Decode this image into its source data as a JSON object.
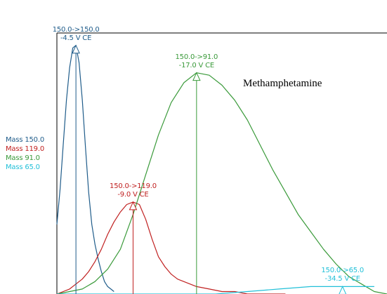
{
  "chart_data": {
    "type": "line",
    "title": "",
    "xlabel": "",
    "ylabel": "",
    "annotation": "Methamphetamine",
    "grid": false,
    "legend_position": "left",
    "series": [
      {
        "name": "Mass 150.0",
        "color": "#1f5c8a",
        "x": [
          0.0,
          0.05,
          0.1,
          0.15,
          0.2,
          0.25,
          0.3,
          0.35,
          0.4,
          0.45,
          0.5,
          0.55,
          0.6,
          0.65,
          0.7,
          0.75,
          0.8,
          0.85,
          0.9
        ],
        "values": [
          0.28,
          0.42,
          0.6,
          0.78,
          0.91,
          0.99,
          1.0,
          0.93,
          0.78,
          0.59,
          0.41,
          0.28,
          0.2,
          0.14,
          0.09,
          0.05,
          0.03,
          0.02,
          0.01
        ],
        "peak": {
          "transition": "150.0->150.0",
          "ce": "-4.5 V CE"
        }
      },
      {
        "name": "Mass 119.0",
        "color": "#c02020",
        "x": [
          0.0,
          0.1,
          0.2,
          0.3,
          0.4,
          0.5,
          0.6,
          0.7,
          0.8,
          0.9,
          1.0,
          1.1,
          1.2,
          1.3,
          1.4,
          1.5,
          1.6,
          1.7,
          1.8,
          1.9,
          2.0,
          2.2,
          2.4,
          2.6,
          2.8,
          3.0,
          3.2,
          3.4,
          3.6
        ],
        "values": [
          0.0,
          0.01,
          0.02,
          0.04,
          0.06,
          0.09,
          0.13,
          0.18,
          0.24,
          0.29,
          0.33,
          0.36,
          0.37,
          0.36,
          0.3,
          0.22,
          0.15,
          0.11,
          0.08,
          0.06,
          0.05,
          0.03,
          0.02,
          0.01,
          0.01,
          0.0,
          0.0,
          0.0,
          0.0
        ],
        "peak": {
          "transition": "150.0->119.0",
          "ce": "-9.0 V CE"
        }
      },
      {
        "name": "Mass 91.0",
        "color": "#3a9a3a",
        "x": [
          0.0,
          0.2,
          0.4,
          0.6,
          0.8,
          1.0,
          1.2,
          1.4,
          1.6,
          1.8,
          2.0,
          2.2,
          2.4,
          2.6,
          2.8,
          3.0,
          3.2,
          3.4,
          3.6,
          3.8,
          4.0,
          4.2,
          4.4,
          4.6,
          4.8,
          5.0,
          5.2
        ],
        "values": [
          0.0,
          0.01,
          0.02,
          0.05,
          0.1,
          0.18,
          0.32,
          0.48,
          0.64,
          0.77,
          0.85,
          0.89,
          0.88,
          0.84,
          0.78,
          0.7,
          0.6,
          0.5,
          0.41,
          0.32,
          0.25,
          0.18,
          0.12,
          0.07,
          0.04,
          0.01,
          0.0
        ],
        "peak": {
          "transition": "150.0->91.0",
          "ce": "-17.0 V CE"
        }
      },
      {
        "name": "Mass 65.0",
        "color": "#22c0d8",
        "x": [
          0.0,
          0.5,
          1.0,
          1.5,
          2.0,
          2.5,
          3.0,
          3.5,
          4.0,
          4.5,
          5.0
        ],
        "values": [
          0.0,
          0.0,
          0.0,
          0.0,
          0.0,
          0.0,
          0.01,
          0.02,
          0.03,
          0.03,
          0.03
        ],
        "peak": {
          "transition": "150.0->65.0",
          "ce": "-34.5 V CE"
        }
      }
    ],
    "markers": [
      {
        "series": 0,
        "x": 0.3,
        "y": 1.0
      },
      {
        "series": 1,
        "x": 1.2,
        "y": 0.37
      },
      {
        "series": 2,
        "x": 2.2,
        "y": 0.89
      },
      {
        "series": 3,
        "x": 4.5,
        "y": 0.03
      }
    ],
    "xlim": [
      0.0,
      5.2
    ],
    "ylim": [
      0.0,
      1.05
    ]
  }
}
